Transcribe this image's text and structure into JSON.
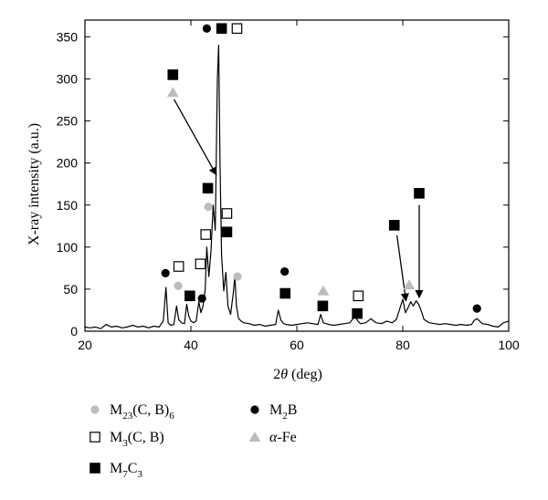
{
  "chart_data": {
    "type": "line",
    "xlabel_prefix": "2",
    "xlabel_theta": "θ",
    "xlabel_suffix": " (deg)",
    "ylabel": "X-ray intensity (a.u.)",
    "xlim": [
      20,
      100
    ],
    "ylim": [
      0,
      370
    ],
    "xticks": [
      20,
      40,
      60,
      80,
      100
    ],
    "yticks": [
      0,
      50,
      100,
      150,
      200,
      250,
      300,
      350
    ],
    "grid": false,
    "legend_placement": "bottom",
    "legend": [
      {
        "key": "m23",
        "marker": "circle-gray",
        "base": "M",
        "sub1": "23",
        "mid": "(C, B)",
        "sub2": "6"
      },
      {
        "key": "m2b",
        "marker": "circle-black",
        "base": "M",
        "sub1": "2",
        "mid": "B",
        "sub2": ""
      },
      {
        "key": "m3",
        "marker": "square-open",
        "base": "M",
        "sub1": "3",
        "mid": "(C, B)",
        "sub2": ""
      },
      {
        "key": "fe",
        "marker": "triangle-gray",
        "base": "α",
        "sub1": "",
        "mid": "-Fe",
        "sub2": ""
      },
      {
        "key": "m7",
        "marker": "square-black",
        "base": "M",
        "sub1": "7",
        "mid": "C",
        "sub2": "3"
      }
    ],
    "series": [
      {
        "x": [
          20,
          21,
          22,
          23,
          24,
          25,
          26,
          27,
          28,
          29,
          30,
          31,
          32,
          33,
          34,
          34.8,
          35.3,
          35.7,
          36.2,
          36.8,
          37.3,
          37.7,
          38.2,
          38.8,
          39.2,
          39.6,
          40.0,
          40.5,
          41.0,
          41.5,
          41.9,
          42.3,
          42.7,
          43.0,
          43.4,
          43.8,
          44.2,
          44.6,
          45.0,
          45.25,
          45.5,
          45.8,
          46.2,
          46.6,
          47.0,
          47.5,
          48.0,
          48.3,
          48.6,
          49.0,
          49.5,
          50,
          51,
          52,
          53,
          54,
          55,
          56,
          56.5,
          57,
          57.5,
          58,
          59,
          60,
          61,
          62,
          63,
          64,
          64.5,
          65,
          65.5,
          66,
          67,
          68,
          69,
          70,
          71,
          71.5,
          72,
          73,
          74,
          74.5,
          75,
          76,
          77,
          78,
          78.8,
          79.5,
          80,
          80.5,
          81,
          81.5,
          82,
          82.5,
          83,
          83.5,
          84,
          85,
          86,
          87,
          88,
          89,
          90,
          91,
          92,
          93,
          93.5,
          94,
          94.5,
          95,
          96,
          97,
          98,
          99,
          100
        ],
        "y": [
          5,
          4,
          5,
          3,
          8,
          5,
          6,
          4,
          5,
          7,
          5,
          6,
          4,
          6,
          5,
          12,
          52,
          10,
          7,
          8,
          30,
          14,
          10,
          9,
          32,
          18,
          12,
          10,
          12,
          35,
          22,
          30,
          50,
          100,
          65,
          95,
          150,
          120,
          300,
          340,
          200,
          90,
          48,
          70,
          30,
          20,
          45,
          65,
          30,
          15,
          12,
          10,
          9,
          7,
          8,
          6,
          7,
          8,
          25,
          13,
          9,
          8,
          7,
          8,
          9,
          10,
          9,
          8,
          20,
          10,
          9,
          8,
          7,
          8,
          9,
          10,
          18,
          12,
          9,
          10,
          15,
          12,
          10,
          9,
          12,
          10,
          14,
          28,
          38,
          22,
          28,
          35,
          30,
          36,
          32,
          24,
          14,
          10,
          9,
          8,
          9,
          8,
          7,
          8,
          7,
          8,
          13,
          15,
          12,
          9,
          8,
          6,
          5,
          10,
          12
        ]
      }
    ],
    "annotations": [
      {
        "marker": "circle-gray",
        "x": 43.3,
        "y": 148
      },
      {
        "marker": "circle-gray",
        "x": 37.6,
        "y": 54
      },
      {
        "marker": "circle-gray",
        "x": 48.8,
        "y": 65
      },
      {
        "marker": "circle-black",
        "x": 35.2,
        "y": 69
      },
      {
        "marker": "circle-black",
        "x": 42.1,
        "y": 39
      },
      {
        "marker": "circle-black",
        "x": 43.0,
        "y": 360
      },
      {
        "marker": "circle-black",
        "x": 57.7,
        "y": 71
      },
      {
        "marker": "circle-black",
        "x": 94.0,
        "y": 27
      },
      {
        "marker": "square-open",
        "x": 37.7,
        "y": 77
      },
      {
        "marker": "square-open",
        "x": 41.8,
        "y": 80
      },
      {
        "marker": "square-open",
        "x": 42.8,
        "y": 115
      },
      {
        "marker": "square-open",
        "x": 46.8,
        "y": 140
      },
      {
        "marker": "square-open",
        "x": 48.7,
        "y": 360
      },
      {
        "marker": "square-open",
        "x": 71.6,
        "y": 42
      },
      {
        "marker": "square-black",
        "x": 36.6,
        "y": 305
      },
      {
        "marker": "square-black",
        "x": 39.8,
        "y": 42
      },
      {
        "marker": "square-black",
        "x": 43.2,
        "y": 170
      },
      {
        "marker": "square-black",
        "x": 45.8,
        "y": 360
      },
      {
        "marker": "square-black",
        "x": 46.8,
        "y": 118
      },
      {
        "marker": "square-black",
        "x": 57.8,
        "y": 45
      },
      {
        "marker": "square-black",
        "x": 64.9,
        "y": 30
      },
      {
        "marker": "square-black",
        "x": 71.4,
        "y": 21
      },
      {
        "marker": "square-black",
        "x": 78.4,
        "y": 126
      },
      {
        "marker": "square-black",
        "x": 83.1,
        "y": 164
      },
      {
        "marker": "triangle-gray",
        "x": 36.6,
        "y": 284
      },
      {
        "marker": "triangle-gray",
        "x": 65.0,
        "y": 48
      },
      {
        "marker": "triangle-gray",
        "x": 81.2,
        "y": 55
      }
    ],
    "arrows": [
      {
        "x1": 36.8,
        "y1": 276,
        "x2": 44.8,
        "y2": 186
      },
      {
        "x1": 78.9,
        "y1": 114,
        "x2": 80.6,
        "y2": 36
      },
      {
        "x1": 83.1,
        "y1": 150,
        "x2": 83.1,
        "y2": 40
      }
    ]
  }
}
